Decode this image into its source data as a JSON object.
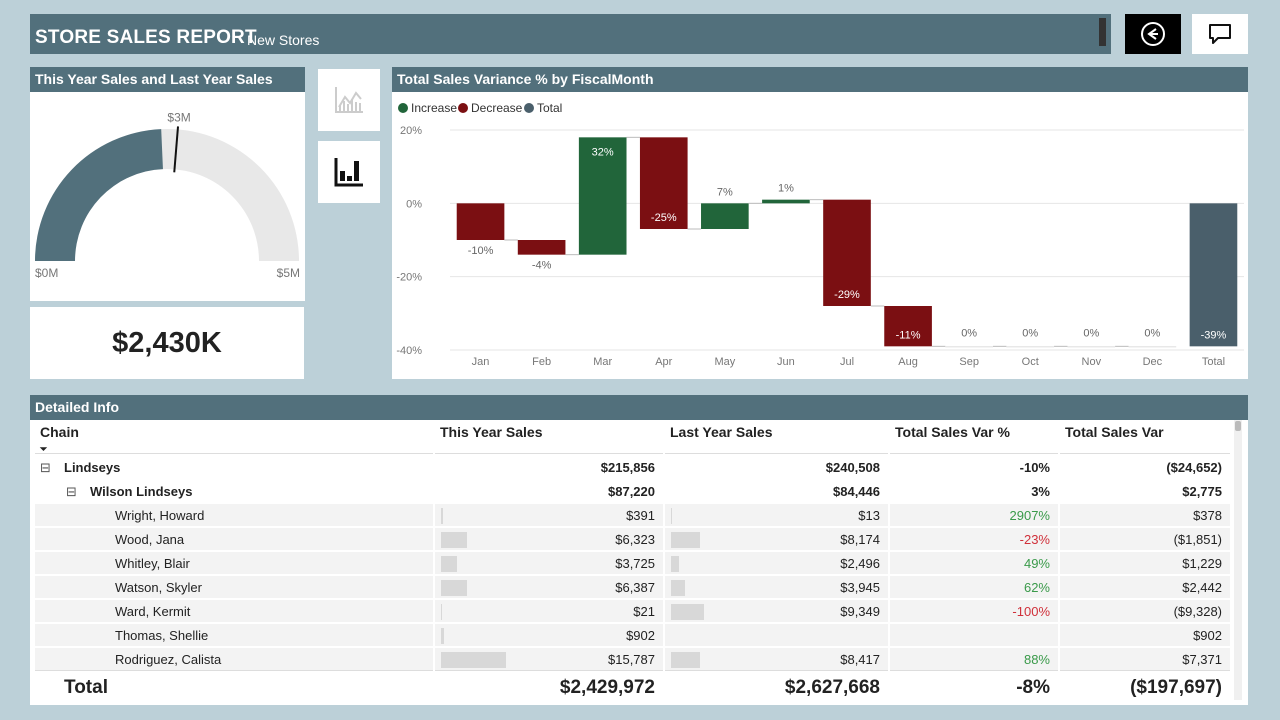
{
  "header": {
    "title": "STORE SALES REPORT",
    "subtitle": "New Stores"
  },
  "gauge": {
    "title": "This Year Sales and Last Year Sales",
    "min_label": "$0M",
    "max_label": "$5M",
    "target_label": "$3M",
    "value": 2.43,
    "target": 2.63,
    "max": 5
  },
  "kpi": {
    "value": "$2,430K"
  },
  "waterfall": {
    "title": "Total Sales Variance % by FiscalMonth",
    "legend": [
      {
        "label": "Increase",
        "color": "#21653a"
      },
      {
        "label": "Decrease",
        "color": "#7b0f12"
      },
      {
        "label": "Total",
        "color": "#4a5f6b"
      }
    ]
  },
  "chart_data": {
    "type": "bar",
    "categories": [
      "Jan",
      "Feb",
      "Mar",
      "Apr",
      "May",
      "Jun",
      "Jul",
      "Aug",
      "Sep",
      "Oct",
      "Nov",
      "Dec",
      "Total"
    ],
    "values": [
      -10,
      -4,
      32,
      -25,
      7,
      1,
      -29,
      -11,
      0,
      0,
      0,
      0,
      -39
    ],
    "data_labels": [
      "-10%",
      "-4%",
      "32%",
      "-25%",
      "7%",
      "1%",
      "-29%",
      "-11%",
      "0%",
      "0%",
      "0%",
      "0%",
      "-39%"
    ],
    "y_ticks": [
      "20%",
      "0%",
      "-20%",
      "-40%"
    ],
    "ylim": [
      -40,
      20
    ],
    "grid": true,
    "legend_position": "top-left"
  },
  "table": {
    "title": "Detailed  Info",
    "columns": [
      "Chain",
      "This Year Sales",
      "Last Year Sales",
      "Total Sales Var %",
      "Total Sales Var"
    ],
    "rows": [
      {
        "name": "Lindseys",
        "level": 0,
        "ty": "$215,856",
        "ly": "$240,508",
        "varp": "-10%",
        "var": "($24,652)",
        "bold": true,
        "expand": "⊟"
      },
      {
        "name": "Wilson Lindseys",
        "level": 1,
        "ty": "$87,220",
        "ly": "$84,446",
        "varp": "3%",
        "var": "$2,775",
        "bold": true,
        "expand": "⊟"
      },
      {
        "name": "Wright, Howard",
        "level": 2,
        "ty": "$391",
        "ly": "$13",
        "varp": "2907%",
        "var": "$378",
        "tyf": 0.025,
        "lyf": 0.001,
        "sign": "pos"
      },
      {
        "name": "Wood, Jana",
        "level": 2,
        "ty": "$6,323",
        "ly": "$8,174",
        "varp": "-23%",
        "var": "($1,851)",
        "tyf": 0.4,
        "lyf": 0.44,
        "sign": "neg"
      },
      {
        "name": "Whitley, Blair",
        "level": 2,
        "ty": "$3,725",
        "ly": "$2,496",
        "varp": "49%",
        "var": "$1,229",
        "tyf": 0.24,
        "lyf": 0.13,
        "sign": "pos"
      },
      {
        "name": "Watson, Skyler",
        "level": 2,
        "ty": "$6,387",
        "ly": "$3,945",
        "varp": "62%",
        "var": "$2,442",
        "tyf": 0.4,
        "lyf": 0.21,
        "sign": "pos"
      },
      {
        "name": "Ward, Kermit",
        "level": 2,
        "ty": "$21",
        "ly": "$9,349",
        "varp": "-100%",
        "var": "($9,328)",
        "tyf": 0.005,
        "lyf": 0.5,
        "sign": "neg"
      },
      {
        "name": "Thomas, Shellie",
        "level": 2,
        "ty": "$902",
        "ly": "",
        "varp": "",
        "var": "$902",
        "tyf": 0.05,
        "lyf": 0,
        "sign": ""
      },
      {
        "name": "Rodriguez, Calista",
        "level": 2,
        "ty": "$15,787",
        "ly": "$8,417",
        "varp": "88%",
        "var": "$7,371",
        "tyf": 1.0,
        "lyf": 0.45,
        "sign": "pos"
      }
    ],
    "total": {
      "label": "Total",
      "ty": "$2,429,972",
      "ly": "$2,627,668",
      "varp": "-8%",
      "var": "($197,697)"
    }
  }
}
